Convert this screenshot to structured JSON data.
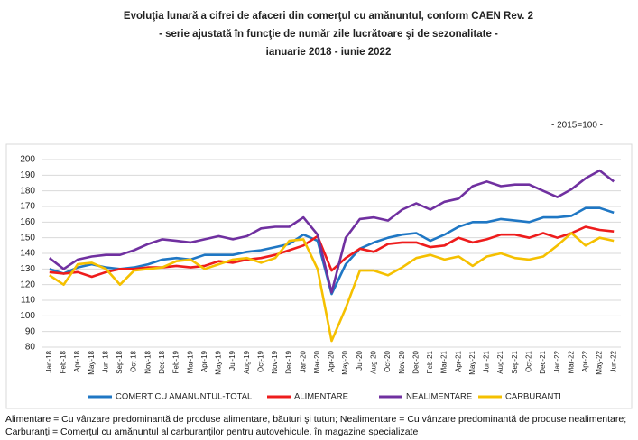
{
  "chart_data": {
    "type": "line",
    "title": "Evoluţia lunară a cifrei de afaceri din comerţul cu amănuntul,  conform CAEN Rev. 2",
    "subtitle": "- serie ajustată în funcţie de număr zile lucrătoare şi de sezonalitate -",
    "subtitle2": "ianuarie 2018 -  iunie 2022",
    "annotation": "- 2015=100 -",
    "categories": [
      "Jan-18",
      "Feb-18",
      "Apr-18",
      "May-18",
      "Jun-18",
      "Sep-18",
      "Oct-18",
      "Nov-18",
      "Dec-18",
      "Feb-19",
      "Mar-19",
      "Apr-19",
      "May-19",
      "Jul-19",
      "Aug-19",
      "Oct-19",
      "Nov-19",
      "Dec-19",
      "Jan-20",
      "Mar-20",
      "Apr-20",
      "May-20",
      "Jul-20",
      "Aug-20",
      "Oct-20",
      "Nov-20",
      "Dec-20",
      "Feb-21",
      "Mar-21",
      "Apr-21",
      "May-21",
      "Jun-21",
      "Aug-21",
      "Sep-21",
      "Oct-21",
      "Dec-21",
      "Jan-22",
      "Mar-22",
      "Apr-22",
      "May-22",
      "Jun-22"
    ],
    "series": [
      {
        "name": "COMERT CU AMANUNTUL-TOTAL",
        "color": "#1f77c4",
        "values": [
          130,
          127,
          131,
          133,
          131,
          130,
          131,
          133,
          136,
          137,
          136,
          139,
          139,
          139,
          141,
          142,
          144,
          146,
          152,
          148,
          114,
          133,
          143,
          147,
          150,
          152,
          153,
          148,
          152,
          157,
          160,
          160,
          162,
          161,
          160,
          163,
          163,
          164,
          169,
          169,
          166
        ]
      },
      {
        "name": "ALIMENTARE",
        "color": "#ee1c1c",
        "values": [
          128,
          127,
          128,
          125,
          128,
          130,
          130,
          131,
          131,
          132,
          131,
          132,
          135,
          134,
          136,
          137,
          139,
          142,
          145,
          151,
          129,
          137,
          143,
          141,
          146,
          147,
          147,
          144,
          145,
          150,
          147,
          149,
          152,
          152,
          150,
          153,
          150,
          153,
          157,
          155,
          154
        ]
      },
      {
        "name": "NEALIMENTARE",
        "color": "#7030a0",
        "values": [
          137,
          130,
          136,
          138,
          139,
          139,
          142,
          146,
          149,
          148,
          147,
          149,
          151,
          149,
          151,
          156,
          157,
          157,
          163,
          152,
          115,
          150,
          162,
          163,
          161,
          168,
          172,
          168,
          173,
          175,
          183,
          186,
          183,
          184,
          184,
          180,
          176,
          181,
          188,
          193,
          186
        ]
      },
      {
        "name": "CARBURANTI",
        "color": "#f5c000",
        "values": [
          126,
          120,
          133,
          134,
          130,
          120,
          129,
          130,
          131,
          135,
          136,
          130,
          133,
          136,
          137,
          134,
          137,
          148,
          149,
          130,
          84,
          105,
          129,
          129,
          126,
          131,
          137,
          139,
          136,
          138,
          132,
          138,
          140,
          137,
          136,
          138,
          145,
          153,
          145,
          150,
          148
        ]
      }
    ],
    "ylim": [
      80,
      200
    ],
    "yticks": [
      80,
      90,
      100,
      110,
      120,
      130,
      140,
      150,
      160,
      170,
      180,
      190,
      200
    ],
    "grid": true,
    "footnote": "Alimentare = Cu vânzare predominantă de produse alimentare, băuturi şi tutun; Nealimentare = Cu vânzare predominantă de produse nealimentare; Carburanţi = Comerţul cu amănuntul al carburanţilor pentru autovehicule, în magazine specializate"
  }
}
